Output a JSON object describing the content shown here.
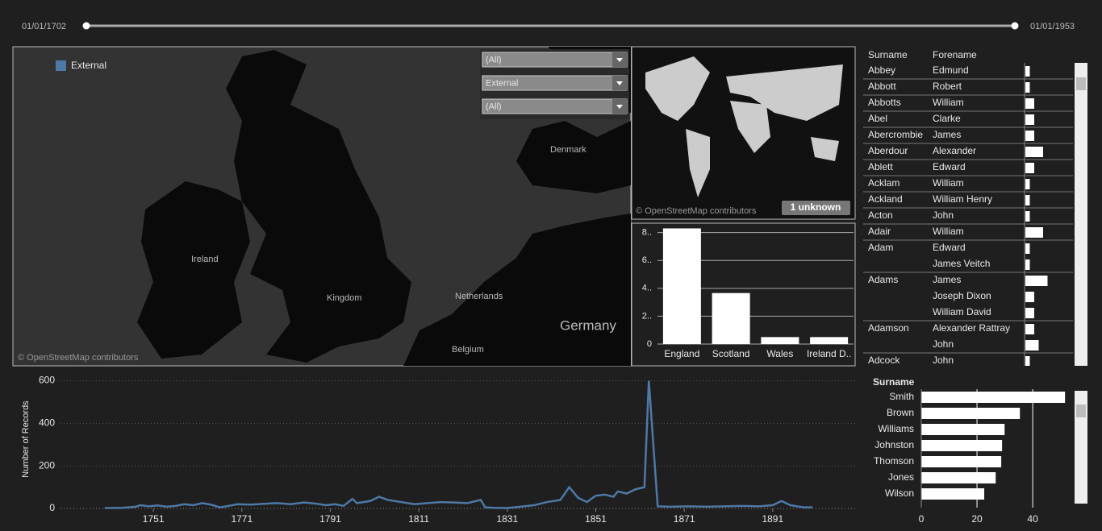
{
  "date_slider": {
    "start": "01/01/1702",
    "end": "01/01/1953"
  },
  "map": {
    "legend": "External",
    "labels": {
      "denmark": "Denmark",
      "ireland": "Ireland",
      "kingdom": "Kingdom",
      "netherlands": "Netherlands",
      "germany": "Germany",
      "belgium": "Belgium"
    },
    "attribution": "© OpenStreetMap contributors",
    "filters": [
      "(All)",
      "External",
      "(All)"
    ]
  },
  "world_map": {
    "attribution": "© OpenStreetMap contributors",
    "unknown_badge": "1 unknown"
  },
  "names_table": {
    "headers": {
      "surname": "Surname",
      "forename": "Forename"
    },
    "groups": [
      {
        "surname": "Abbey",
        "rows": [
          {
            "forename": "Edmund",
            "value": 1
          }
        ]
      },
      {
        "surname": "Abbott",
        "rows": [
          {
            "forename": "Robert",
            "value": 1
          }
        ]
      },
      {
        "surname": "Abbotts",
        "rows": [
          {
            "forename": "William",
            "value": 2
          }
        ]
      },
      {
        "surname": "Abel",
        "rows": [
          {
            "forename": "Clarke",
            "value": 2
          }
        ]
      },
      {
        "surname": "Abercrombie",
        "rows": [
          {
            "forename": "James",
            "value": 2
          }
        ]
      },
      {
        "surname": "Aberdour",
        "rows": [
          {
            "forename": "Alexander",
            "value": 4
          }
        ]
      },
      {
        "surname": "Ablett",
        "rows": [
          {
            "forename": "Edward",
            "value": 2
          }
        ]
      },
      {
        "surname": "Acklam",
        "rows": [
          {
            "forename": "William",
            "value": 1
          }
        ]
      },
      {
        "surname": "Ackland",
        "rows": [
          {
            "forename": "William Henry",
            "value": 1
          }
        ]
      },
      {
        "surname": "Acton",
        "rows": [
          {
            "forename": "John",
            "value": 1
          }
        ]
      },
      {
        "surname": "Adair",
        "rows": [
          {
            "forename": "William",
            "value": 4
          }
        ]
      },
      {
        "surname": "Adam",
        "rows": [
          {
            "forename": "Edward",
            "value": 1
          },
          {
            "forename": "James Veitch",
            "value": 1
          }
        ]
      },
      {
        "surname": "Adams",
        "rows": [
          {
            "forename": "James",
            "value": 5
          },
          {
            "forename": "Joseph Dixon",
            "value": 2
          },
          {
            "forename": "William David",
            "value": 2
          }
        ]
      },
      {
        "surname": "Adamson",
        "rows": [
          {
            "forename": "Alexander Rattray",
            "value": 2
          },
          {
            "forename": "John",
            "value": 3
          }
        ]
      },
      {
        "surname": "Adcock",
        "rows": [
          {
            "forename": "John",
            "value": 1
          }
        ]
      }
    ]
  },
  "chart_data": [
    {
      "type": "bar",
      "categories": [
        "England",
        "Scotland",
        "Wales",
        "Ireland D.."
      ],
      "values": [
        8.3,
        3.66,
        0.5,
        0.5
      ],
      "color": "#ffffff",
      "ylim": [
        0,
        8.5
      ],
      "yticks": [
        0,
        {
          "value": 2,
          "label": "2.."
        },
        {
          "value": 4,
          "label": "4.."
        },
        {
          "value": 6,
          "label": "6.."
        },
        {
          "value": 8,
          "label": "8.."
        }
      ],
      "grid": true
    },
    {
      "type": "line",
      "y_label": "Number of Records",
      "x": [
        1740,
        1744,
        1747,
        1748,
        1750,
        1752,
        1754,
        1756,
        1758,
        1760,
        1762,
        1764,
        1766,
        1768,
        1770,
        1773,
        1776,
        1779,
        1782,
        1785,
        1788,
        1790,
        1792,
        1794,
        1796,
        1797,
        1800,
        1802,
        1804,
        1807,
        1810,
        1813,
        1816,
        1819,
        1822,
        1825,
        1826,
        1828,
        1831,
        1834,
        1837,
        1840,
        1843,
        1845,
        1847,
        1849,
        1851,
        1853,
        1855,
        1856,
        1858,
        1860,
        1862,
        1863,
        1865,
        1868,
        1872,
        1876,
        1880,
        1884,
        1888,
        1891,
        1893,
        1895,
        1898,
        1900
      ],
      "series": [
        {
          "name": "Number of Records",
          "color": "#4e79a7",
          "values": [
            2,
            3,
            8,
            15,
            10,
            14,
            8,
            12,
            20,
            15,
            25,
            18,
            5,
            12,
            20,
            18,
            22,
            25,
            20,
            28,
            22,
            15,
            20,
            12,
            45,
            25,
            35,
            55,
            40,
            30,
            20,
            25,
            30,
            28,
            25,
            40,
            5,
            3,
            2,
            8,
            15,
            30,
            40,
            100,
            50,
            30,
            60,
            65,
            55,
            80,
            70,
            90,
            100,
            600,
            10,
            8,
            10,
            8,
            10,
            12,
            10,
            15,
            35,
            15,
            5,
            5
          ]
        }
      ],
      "xlim": [
        1730,
        1910
      ],
      "xticks": [
        1751,
        1771,
        1791,
        1811,
        1831,
        1851,
        1871,
        1891
      ],
      "ylim": [
        0,
        640
      ],
      "yticks": [
        0,
        200,
        400,
        600
      ],
      "grid": true
    },
    {
      "type": "hbar",
      "header": "Surname",
      "categories": [
        "Smith",
        "Brown",
        "Williams",
        "Johnston",
        "Thomson",
        "Jones",
        "Wilson"
      ],
      "values": [
        51.6,
        35.4,
        29.9,
        29,
        28.7,
        26.7,
        22.6
      ],
      "color": "#ffffff",
      "xlim": [
        0,
        53
      ],
      "xticks": [
        0,
        20,
        40
      ],
      "grid": true
    }
  ]
}
